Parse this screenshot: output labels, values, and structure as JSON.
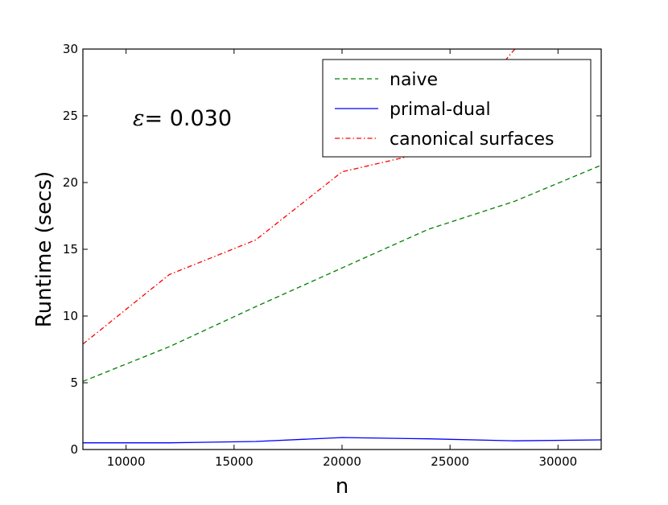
{
  "chart_data": {
    "type": "line",
    "title": "",
    "xlabel": "n",
    "ylabel": "Runtime (secs)",
    "xlim": [
      8000,
      32000
    ],
    "ylim": [
      0,
      30
    ],
    "xticks": [
      10000,
      15000,
      20000,
      25000,
      30000
    ],
    "yticks": [
      0,
      5,
      10,
      15,
      20,
      25,
      30
    ],
    "grid": false,
    "legend_position": "top-right",
    "annotation": {
      "symbol": "ε",
      "text": "= 0.030"
    },
    "series": [
      {
        "name": "naive",
        "color": "#008000",
        "line_style": "dashed",
        "x": [
          8000,
          12000,
          16000,
          20000,
          24000,
          28000,
          32000
        ],
        "y": [
          5.1,
          7.7,
          10.7,
          13.6,
          16.5,
          18.6,
          21.3
        ]
      },
      {
        "name": "primal-dual",
        "color": "#0000ff",
        "line_style": "solid",
        "x": [
          8000,
          12000,
          16000,
          20000,
          24000,
          28000,
          32000
        ],
        "y": [
          0.5,
          0.5,
          0.6,
          0.9,
          0.8,
          0.65,
          0.72
        ]
      },
      {
        "name": "canonical surfaces",
        "color": "#ff0000",
        "line_style": "dash-dot",
        "x": [
          8000,
          12000,
          16000,
          20000,
          24000,
          28000
        ],
        "y": [
          7.9,
          13.1,
          15.7,
          20.8,
          22.3,
          30.0
        ]
      }
    ]
  }
}
